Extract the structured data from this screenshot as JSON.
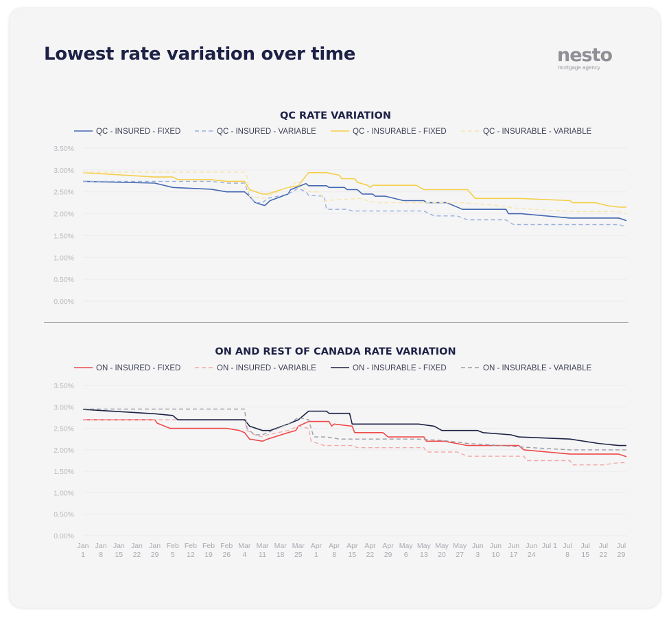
{
  "page": {
    "title": "Lowest rate variation over time",
    "logo": {
      "word": "nesto",
      "tagline": "mortgage agency"
    }
  },
  "chart_data": [
    {
      "id": "qc",
      "type": "line",
      "title": "QC RATE VARIATION",
      "ylim": [
        0,
        3.5
      ],
      "yticks": [
        0,
        0.5,
        1.0,
        1.5,
        2.0,
        2.5,
        3.0,
        3.5
      ],
      "ytick_format": "percent_2dp",
      "xticks": [],
      "x_domain": [
        0,
        212
      ],
      "grid": true,
      "legend": "top",
      "series": [
        {
          "name": "QC - INSURED - FIXED",
          "color": "#4468b0",
          "dash": false,
          "width": 1.6,
          "points": [
            [
              0,
              2.74
            ],
            [
              28,
              2.7
            ],
            [
              35,
              2.6
            ],
            [
              50,
              2.56
            ],
            [
              56,
              2.5
            ],
            [
              63,
              2.5
            ],
            [
              65,
              2.4
            ],
            [
              67,
              2.26
            ],
            [
              70,
              2.2
            ],
            [
              71,
              2.19
            ],
            [
              73,
              2.3
            ],
            [
              80,
              2.45
            ],
            [
              81,
              2.55
            ],
            [
              84,
              2.62
            ],
            [
              87,
              2.69
            ],
            [
              88,
              2.64
            ],
            [
              95,
              2.64
            ],
            [
              96,
              2.6
            ],
            [
              102,
              2.6
            ],
            [
              103,
              2.55
            ],
            [
              107,
              2.55
            ],
            [
              109,
              2.45
            ],
            [
              113,
              2.45
            ],
            [
              114,
              2.4
            ],
            [
              118,
              2.4
            ],
            [
              125,
              2.3
            ],
            [
              133,
              2.3
            ],
            [
              134,
              2.25
            ],
            [
              142,
              2.25
            ],
            [
              148,
              2.1
            ],
            [
              165,
              2.1
            ],
            [
              166,
              2.0
            ],
            [
              171,
              2.0
            ],
            [
              190,
              1.9
            ],
            [
              209,
              1.9
            ],
            [
              212,
              1.84
            ]
          ]
        },
        {
          "name": "QC - INSURED - VARIABLE",
          "color": "#98b0dc",
          "dash": true,
          "width": 1.4,
          "points": [
            [
              0,
              2.74
            ],
            [
              50,
              2.74
            ],
            [
              56,
              2.7
            ],
            [
              63,
              2.7
            ],
            [
              65,
              2.4
            ],
            [
              67,
              2.25
            ],
            [
              70,
              2.25
            ],
            [
              72,
              2.35
            ],
            [
              80,
              2.45
            ],
            [
              84,
              2.58
            ],
            [
              87,
              2.5
            ],
            [
              88,
              2.42
            ],
            [
              94,
              2.4
            ],
            [
              95,
              2.1
            ],
            [
              103,
              2.1
            ],
            [
              105,
              2.06
            ],
            [
              133,
              2.06
            ],
            [
              137,
              1.95
            ],
            [
              146,
              1.95
            ],
            [
              150,
              1.86
            ],
            [
              165,
              1.86
            ],
            [
              168,
              1.75
            ],
            [
              191,
              1.75
            ],
            [
              209,
              1.75
            ],
            [
              212,
              1.7
            ]
          ]
        },
        {
          "name": "QC - INSURABLE - FIXED",
          "color": "#f4cf48",
          "dash": false,
          "width": 1.6,
          "points": [
            [
              0,
              2.94
            ],
            [
              28,
              2.84
            ],
            [
              35,
              2.84
            ],
            [
              37,
              2.78
            ],
            [
              50,
              2.78
            ],
            [
              56,
              2.74
            ],
            [
              63,
              2.74
            ],
            [
              65,
              2.55
            ],
            [
              70,
              2.45
            ],
            [
              72,
              2.45
            ],
            [
              80,
              2.6
            ],
            [
              84,
              2.64
            ],
            [
              88,
              2.94
            ],
            [
              95,
              2.94
            ],
            [
              100,
              2.88
            ],
            [
              101,
              2.8
            ],
            [
              106,
              2.8
            ],
            [
              107,
              2.72
            ],
            [
              111,
              2.65
            ],
            [
              112,
              2.6
            ],
            [
              113,
              2.65
            ],
            [
              130,
              2.65
            ],
            [
              133,
              2.55
            ],
            [
              150,
              2.55
            ],
            [
              153,
              2.35
            ],
            [
              170,
              2.35
            ],
            [
              190,
              2.3
            ],
            [
              191,
              2.25
            ],
            [
              200,
              2.25
            ],
            [
              205,
              2.18
            ],
            [
              209,
              2.15
            ],
            [
              212,
              2.15
            ]
          ]
        },
        {
          "name": "QC - INSURABLE - VARIABLE",
          "color": "#f7e6ad",
          "dash": true,
          "width": 1.4,
          "points": [
            [
              0,
              2.95
            ],
            [
              63,
              2.95
            ],
            [
              64,
              2.85
            ],
            [
              65,
              2.4
            ],
            [
              70,
              2.35
            ],
            [
              72,
              2.4
            ],
            [
              80,
              2.6
            ],
            [
              84,
              2.75
            ],
            [
              85,
              2.65
            ],
            [
              88,
              2.5
            ],
            [
              92,
              2.5
            ],
            [
              94,
              2.3
            ],
            [
              108,
              2.35
            ],
            [
              111,
              2.3
            ],
            [
              115,
              2.25
            ],
            [
              148,
              2.25
            ],
            [
              160,
              2.2
            ],
            [
              170,
              2.12
            ],
            [
              190,
              2.05
            ],
            [
              209,
              2.05
            ],
            [
              212,
              2.0
            ]
          ]
        }
      ]
    },
    {
      "id": "on",
      "type": "line",
      "title": "ON AND REST OF CANADA RATE VARIATION",
      "ylim": [
        0,
        3.5
      ],
      "yticks": [
        0,
        0.5,
        1.0,
        1.5,
        2.0,
        2.5,
        3.0,
        3.5
      ],
      "ytick_format": "percent_2dp",
      "x_domain": [
        0,
        212
      ],
      "grid": true,
      "legend": "top",
      "xticks": [
        {
          "x": 0,
          "month": "Jan",
          "day": "1"
        },
        {
          "x": 7,
          "month": "Jan",
          "day": "8"
        },
        {
          "x": 14,
          "month": "Jan",
          "day": "15"
        },
        {
          "x": 21,
          "month": "Jan",
          "day": "22"
        },
        {
          "x": 28,
          "month": "Jan",
          "day": "29"
        },
        {
          "x": 35,
          "month": "Feb",
          "day": "5"
        },
        {
          "x": 42,
          "month": "Feb",
          "day": "12"
        },
        {
          "x": 49,
          "month": "Feb",
          "day": "19"
        },
        {
          "x": 56,
          "month": "Feb",
          "day": "26"
        },
        {
          "x": 63,
          "month": "Mar",
          "day": "4"
        },
        {
          "x": 70,
          "month": "Mar",
          "day": "11"
        },
        {
          "x": 77,
          "month": "Mar",
          "day": "18"
        },
        {
          "x": 84,
          "month": "Mar",
          "day": "25"
        },
        {
          "x": 91,
          "month": "Apr",
          "day": "1"
        },
        {
          "x": 98,
          "month": "Apr",
          "day": "8"
        },
        {
          "x": 105,
          "month": "Apr",
          "day": "15"
        },
        {
          "x": 112,
          "month": "Apr",
          "day": "22"
        },
        {
          "x": 119,
          "month": "Apr",
          "day": "29"
        },
        {
          "x": 126,
          "month": "May",
          "day": "6"
        },
        {
          "x": 133,
          "month": "May",
          "day": "13"
        },
        {
          "x": 140,
          "month": "May",
          "day": "20"
        },
        {
          "x": 147,
          "month": "May",
          "day": "27"
        },
        {
          "x": 154,
          "month": "Jun",
          "day": "3"
        },
        {
          "x": 161,
          "month": "Jun",
          "day": "10"
        },
        {
          "x": 168,
          "month": "Jun",
          "day": "17"
        },
        {
          "x": 175,
          "month": "Jun",
          "day": "24"
        },
        {
          "x": 182,
          "month": "Jul 1",
          "day": ""
        },
        {
          "x": 189,
          "month": "Jul",
          "day": "8"
        },
        {
          "x": 196,
          "month": "Jul",
          "day": "15"
        },
        {
          "x": 203,
          "month": "Jul",
          "day": "22"
        },
        {
          "x": 210,
          "month": "Jul",
          "day": "29"
        }
      ],
      "series": [
        {
          "name": "ON - INSURED - FIXED",
          "color": "#ef4a4a",
          "dash": false,
          "width": 1.6,
          "points": [
            [
              0,
              2.7
            ],
            [
              28,
              2.7
            ],
            [
              29,
              2.62
            ],
            [
              34,
              2.5
            ],
            [
              56,
              2.5
            ],
            [
              61,
              2.45
            ],
            [
              63,
              2.4
            ],
            [
              65,
              2.25
            ],
            [
              70,
              2.2
            ],
            [
              72,
              2.25
            ],
            [
              80,
              2.4
            ],
            [
              83,
              2.45
            ],
            [
              84,
              2.55
            ],
            [
              88,
              2.66
            ],
            [
              92,
              2.66
            ],
            [
              96,
              2.66
            ],
            [
              97,
              2.55
            ],
            [
              98,
              2.6
            ],
            [
              105,
              2.55
            ],
            [
              106,
              2.4
            ],
            [
              117,
              2.4
            ],
            [
              119,
              2.3
            ],
            [
              133,
              2.3
            ],
            [
              134,
              2.2
            ],
            [
              141,
              2.2
            ],
            [
              150,
              2.1
            ],
            [
              160,
              2.1
            ],
            [
              170,
              2.1
            ],
            [
              172,
              2.0
            ],
            [
              190,
              1.9
            ],
            [
              209,
              1.9
            ],
            [
              212,
              1.84
            ]
          ]
        },
        {
          "name": "ON - INSURED - VARIABLE",
          "color": "#f5a8a8",
          "dash": true,
          "width": 1.4,
          "points": [
            [
              0,
              2.7
            ],
            [
              63,
              2.7
            ],
            [
              64,
              2.45
            ],
            [
              67,
              2.35
            ],
            [
              70,
              2.3
            ],
            [
              72,
              2.35
            ],
            [
              80,
              2.45
            ],
            [
              84,
              2.55
            ],
            [
              88,
              2.5
            ],
            [
              89,
              2.2
            ],
            [
              94,
              2.1
            ],
            [
              105,
              2.1
            ],
            [
              107,
              2.05
            ],
            [
              133,
              2.05
            ],
            [
              134,
              1.95
            ],
            [
              146,
              1.95
            ],
            [
              150,
              1.85
            ],
            [
              172,
              1.85
            ],
            [
              173,
              1.75
            ],
            [
              190,
              1.75
            ],
            [
              191,
              1.65
            ],
            [
              203,
              1.65
            ],
            [
              209,
              1.7
            ],
            [
              212,
              1.7
            ]
          ]
        },
        {
          "name": "ON - INSURABLE - FIXED",
          "color": "#1d2145",
          "dash": false,
          "width": 1.6,
          "points": [
            [
              0,
              2.94
            ],
            [
              28,
              2.84
            ],
            [
              35,
              2.8
            ],
            [
              37,
              2.7
            ],
            [
              63,
              2.7
            ],
            [
              65,
              2.55
            ],
            [
              70,
              2.45
            ],
            [
              73,
              2.45
            ],
            [
              80,
              2.6
            ],
            [
              84,
              2.7
            ],
            [
              88,
              2.9
            ],
            [
              95,
              2.9
            ],
            [
              96,
              2.85
            ],
            [
              104,
              2.85
            ],
            [
              105,
              2.6
            ],
            [
              131,
              2.6
            ],
            [
              137,
              2.55
            ],
            [
              140,
              2.45
            ],
            [
              154,
              2.45
            ],
            [
              156,
              2.4
            ],
            [
              167,
              2.35
            ],
            [
              170,
              2.3
            ],
            [
              178,
              2.28
            ],
            [
              190,
              2.25
            ],
            [
              201,
              2.15
            ],
            [
              209,
              2.1
            ],
            [
              212,
              2.1
            ]
          ]
        },
        {
          "name": "ON - INSURABLE - VARIABLE",
          "color": "#9b9ba6",
          "dash": true,
          "width": 1.4,
          "points": [
            [
              0,
              2.95
            ],
            [
              63,
              2.95
            ],
            [
              64,
              2.5
            ],
            [
              67,
              2.35
            ],
            [
              70,
              2.35
            ],
            [
              72,
              2.4
            ],
            [
              80,
              2.6
            ],
            [
              84,
              2.75
            ],
            [
              88,
              2.7
            ],
            [
              90,
              2.3
            ],
            [
              95,
              2.3
            ],
            [
              100,
              2.25
            ],
            [
              130,
              2.25
            ],
            [
              140,
              2.22
            ],
            [
              150,
              2.15
            ],
            [
              175,
              2.05
            ],
            [
              190,
              2.0
            ],
            [
              212,
              2.0
            ]
          ]
        }
      ]
    }
  ]
}
